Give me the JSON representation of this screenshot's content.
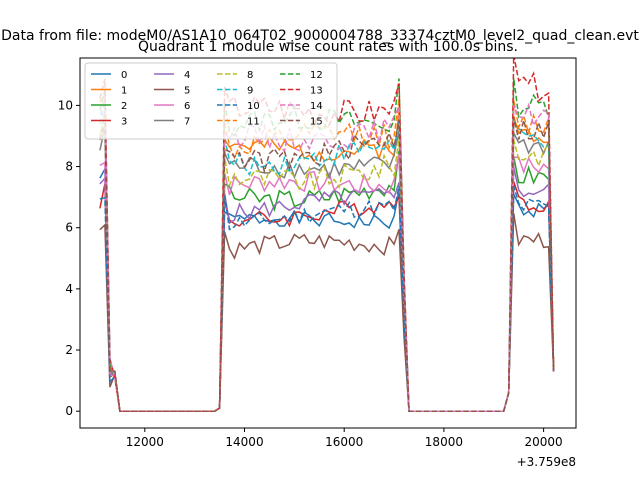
{
  "figure": {
    "suptitle": "Data from file: modeM0/AS1A10_064T02_9000004788_33374cztM0_level2_quad_clean.evt",
    "title": "Quadrant 1 module wise count rates with 100.0s bins.",
    "x_offset_label": "+3.759e8"
  },
  "chart_data": {
    "type": "line",
    "title": "Quadrant 1 module wise count rates with 100.0s bins.",
    "xlabel": "",
    "ylabel": "",
    "x_offset": 375900000,
    "x_range": [
      10700,
      20650
    ],
    "y_range": [
      -0.55,
      11.55
    ],
    "x_ticks": [
      12000,
      14000,
      16000,
      18000,
      20000
    ],
    "x_tick_labels": [
      "12000",
      "14000",
      "16000",
      "18000",
      "20000"
    ],
    "y_ticks": [
      0,
      2,
      4,
      6,
      8,
      10
    ],
    "y_tick_labels": [
      "0",
      "2",
      "4",
      "6",
      "8",
      "10"
    ],
    "grid": false,
    "legend": {
      "placement": "top-left",
      "columns": 4
    },
    "series": [
      {
        "name": "0",
        "color": "#1f77b4",
        "dash": "solid",
        "level": 6.1,
        "early": 8.0,
        "late": 6.6,
        "amp": 0.25,
        "seed": 1
      },
      {
        "name": "1",
        "color": "#ff7f0e",
        "dash": "solid",
        "level": 8.5,
        "early": 10.6,
        "late": 9.1,
        "amp": 0.35,
        "seed": 2
      },
      {
        "name": "2",
        "color": "#2ca02c",
        "dash": "solid",
        "level": 7.0,
        "early": 9.5,
        "late": 7.7,
        "amp": 0.35,
        "seed": 3
      },
      {
        "name": "3",
        "color": "#d62728",
        "dash": "solid",
        "level": 6.4,
        "early": 7.3,
        "late": 6.8,
        "amp": 0.3,
        "seed": 4
      },
      {
        "name": "4",
        "color": "#9467bd",
        "dash": "solid",
        "level": 6.6,
        "early": 7.6,
        "late": 7.2,
        "amp": 0.3,
        "seed": 5
      },
      {
        "name": "5",
        "color": "#8c564b",
        "dash": "solid",
        "level": 5.3,
        "early": 6.2,
        "late": 5.6,
        "amp": 0.3,
        "seed": 6
      },
      {
        "name": "6",
        "color": "#e377c2",
        "dash": "solid",
        "level": 7.2,
        "early": 8.4,
        "late": 8.0,
        "amp": 0.35,
        "seed": 7
      },
      {
        "name": "7",
        "color": "#7f7f7f",
        "dash": "solid",
        "level": 7.8,
        "early": 9.0,
        "late": 8.7,
        "amp": 0.35,
        "seed": 8
      },
      {
        "name": "8",
        "color": "#bcbd22",
        "dash": "dashed",
        "level": 7.6,
        "early": 9.6,
        "late": 8.4,
        "amp": 0.4,
        "seed": 9
      },
      {
        "name": "9",
        "color": "#17becf",
        "dash": "dashed",
        "level": 8.2,
        "early": 10.1,
        "late": 8.9,
        "amp": 0.35,
        "seed": 10
      },
      {
        "name": "10",
        "color": "#1f77b4",
        "dash": "dashed",
        "level": 6.3,
        "early": 7.1,
        "late": 6.7,
        "amp": 0.3,
        "seed": 11
      },
      {
        "name": "11",
        "color": "#ff7f0e",
        "dash": "dashed",
        "level": 8.6,
        "early": 10.4,
        "late": 9.4,
        "amp": 0.4,
        "seed": 12
      },
      {
        "name": "12",
        "color": "#2ca02c",
        "dash": "dashed",
        "level": 9.2,
        "early": 10.2,
        "late": 10.0,
        "amp": 0.4,
        "seed": 13
      },
      {
        "name": "13",
        "color": "#d62728",
        "dash": "dashed",
        "level": 9.6,
        "early": 10.7,
        "late": 10.6,
        "amp": 0.45,
        "seed": 14
      },
      {
        "name": "14",
        "color": "#e377c2",
        "dash": "dashed",
        "level": 8.9,
        "early": 10.3,
        "late": 9.7,
        "amp": 0.4,
        "seed": 15
      },
      {
        "name": "15",
        "color": "#8c564b",
        "dash": "dashed",
        "level": 8.3,
        "early": 9.6,
        "late": 9.2,
        "amp": 0.4,
        "seed": 16
      }
    ]
  }
}
